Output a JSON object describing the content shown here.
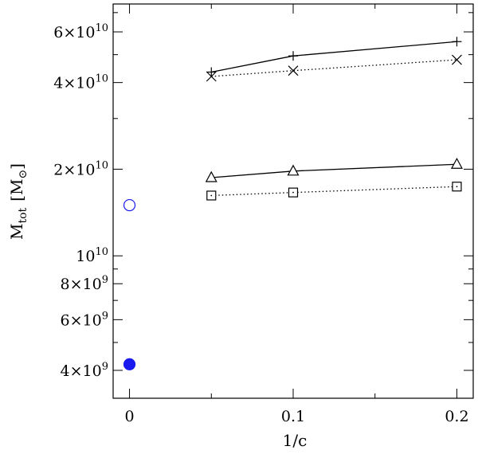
{
  "chart_data": {
    "type": "scatter",
    "title": "",
    "xlabel": "1/c",
    "ylabel": "M_tot [M_⊙]",
    "ylabel_main": "M",
    "ylabel_sub": "tot",
    "ylabel_unit": "M",
    "ylabel_unit_symbol": "⊙",
    "xlim": [
      -0.01,
      0.21
    ],
    "ylim": [
      3200000000.0,
      75000000000.0
    ],
    "yscale": "log",
    "grid": false,
    "x_ticks": [
      {
        "value": 0,
        "label": "0"
      },
      {
        "value": 0.1,
        "label": "0.1"
      },
      {
        "value": 0.2,
        "label": "0.2"
      }
    ],
    "y_ticks": [
      {
        "value": 4000000000.0,
        "mant": "4",
        "exp": "9"
      },
      {
        "value": 6000000000.0,
        "mant": "6",
        "exp": "9"
      },
      {
        "value": 8000000000.0,
        "mant": "8",
        "exp": "9"
      },
      {
        "value": 10000000000.0,
        "mant": "",
        "exp": "10"
      },
      {
        "value": 20000000000.0,
        "mant": "2",
        "exp": "10"
      },
      {
        "value": 40000000000.0,
        "mant": "4",
        "exp": "10"
      },
      {
        "value": 60000000000.0,
        "mant": "6",
        "exp": "10"
      }
    ],
    "series": [
      {
        "marker": "plus",
        "line": "solid",
        "color": "#000000",
        "x": [
          0.05,
          0.1,
          0.2
        ],
        "y": [
          43500000000.0,
          49500000000.0,
          55500000000.0
        ]
      },
      {
        "marker": "cross",
        "line": "dotted",
        "color": "#000000",
        "x": [
          0.05,
          0.1,
          0.2
        ],
        "y": [
          42000000000.0,
          44000000000.0,
          48000000000.0
        ]
      },
      {
        "marker": "triangle",
        "line": "solid",
        "color": "#000000",
        "x": [
          0.05,
          0.1,
          0.2
        ],
        "y": [
          18700000000.0,
          19700000000.0,
          20800000000.0
        ]
      },
      {
        "marker": "square",
        "line": "dotted",
        "color": "#000000",
        "x": [
          0.05,
          0.1,
          0.2
        ],
        "y": [
          16200000000.0,
          16600000000.0,
          17400000000.0
        ]
      },
      {
        "marker": "open-circle",
        "line": "none",
        "color": "#1a1aee",
        "x": [
          0
        ],
        "y": [
          15000000000.0
        ]
      },
      {
        "marker": "filled-circle",
        "line": "none",
        "color": "#1a1aee",
        "x": [
          0
        ],
        "y": [
          4200000000.0
        ]
      }
    ]
  }
}
